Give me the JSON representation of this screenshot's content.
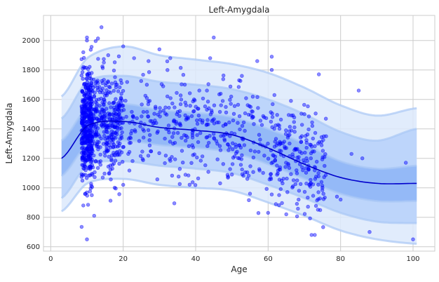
{
  "chart_data": {
    "type": "scatter",
    "title": "Left-Amygdala",
    "xlabel": "Age",
    "ylabel": "Left-Amygdala",
    "xlim": [
      -2,
      106
    ],
    "ylim": [
      570,
      2170
    ],
    "xticks": [
      0,
      20,
      40,
      60,
      80,
      100
    ],
    "yticks": [
      600,
      800,
      1000,
      1200,
      1400,
      1600,
      1800,
      2000
    ],
    "grid": true,
    "colors": {
      "points": "#0000ff",
      "median_line": "#0000cc",
      "band_outer": "#dce9fc",
      "band_middle": "#b9d3fb",
      "band_inner": "#8fb6f6",
      "band_edge": "#a9c7f5",
      "grid": "#cccccc"
    },
    "percentile_curves": {
      "x": [
        3,
        10,
        20,
        30,
        40,
        50,
        60,
        70,
        80,
        90,
        101
      ],
      "p50": [
        1200,
        1420,
        1450,
        1410,
        1390,
        1360,
        1270,
        1160,
        1070,
        1030,
        1030
      ],
      "p25": [
        1080,
        1290,
        1320,
        1290,
        1270,
        1240,
        1160,
        1060,
        960,
        910,
        910
      ],
      "p75": [
        1320,
        1540,
        1570,
        1530,
        1510,
        1480,
        1400,
        1300,
        1180,
        1130,
        1150
      ],
      "p05": [
        930,
        1150,
        1180,
        1150,
        1130,
        1100,
        1020,
        930,
        830,
        770,
        760
      ],
      "p95": [
        1470,
        1720,
        1760,
        1720,
        1700,
        1670,
        1600,
        1500,
        1380,
        1320,
        1400
      ],
      "p01": [
        840,
        1030,
        1060,
        1020,
        1000,
        980,
        900,
        810,
        710,
        650,
        620
      ],
      "p99": [
        1620,
        1880,
        1960,
        1900,
        1870,
        1840,
        1780,
        1680,
        1560,
        1490,
        1540
      ]
    },
    "outlier_points": [
      [
        9,
        1920
      ],
      [
        10,
        2000
      ],
      [
        10,
        2020
      ],
      [
        14,
        2090
      ],
      [
        20,
        1960
      ],
      [
        23,
        1880
      ],
      [
        30,
        1940
      ],
      [
        45,
        2020
      ],
      [
        44,
        1880
      ],
      [
        57,
        1860
      ],
      [
        61,
        1890
      ],
      [
        85,
        1660
      ],
      [
        88,
        700
      ],
      [
        100,
        650
      ],
      [
        10,
        650
      ],
      [
        9,
        880
      ],
      [
        12,
        810
      ],
      [
        20,
        1020
      ],
      [
        50,
        1090
      ],
      [
        55,
        960
      ],
      [
        60,
        830
      ],
      [
        65,
        820
      ],
      [
        72,
        680
      ],
      [
        79,
        940
      ],
      [
        80,
        920
      ],
      [
        74,
        1770
      ],
      [
        61,
        1800
      ],
      [
        27,
        1860
      ],
      [
        33,
        1880
      ],
      [
        47,
        1560
      ],
      [
        52,
        1730
      ],
      [
        41,
        1660
      ],
      [
        37,
        1700
      ],
      [
        70,
        1500
      ],
      [
        76,
        1350
      ],
      [
        83,
        1230
      ],
      [
        68,
        1050
      ],
      [
        75,
        1000
      ],
      [
        86,
        1200
      ],
      [
        98,
        1170
      ]
    ],
    "generated_point_counts": [
      {
        "x_range": [
          8.5,
          11.5
        ],
        "count": 420
      },
      {
        "x_range": [
          11.5,
          20
        ],
        "count": 330
      },
      {
        "x_range": [
          20,
          40
        ],
        "count": 170
      },
      {
        "x_range": [
          40,
          60
        ],
        "count": 170
      },
      {
        "x_range": [
          60,
          76
        ],
        "count": 210
      }
    ]
  }
}
